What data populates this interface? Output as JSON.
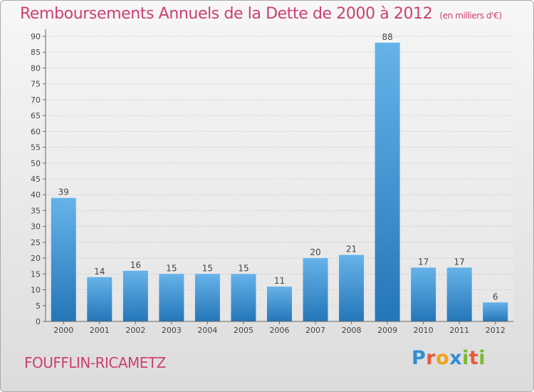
{
  "title": "Remboursements Annuels de la Dette de 2000 à 2012",
  "unit": "(en milliers d'€)",
  "town": "FOUFFLIN-RICAMETZ",
  "logo": {
    "letters": [
      "P",
      "r",
      "o",
      "x",
      "i",
      "t",
      "i"
    ],
    "colors": [
      "#2f8fd4",
      "#e55a3a",
      "#f2a21b",
      "#2f8fd4",
      "#7ab82e",
      "#e55a3a",
      "#7ab82e"
    ]
  },
  "colors": {
    "bar_top": "#66b3ea",
    "bar_bottom": "#2576b8",
    "title": "#cc3f73"
  },
  "chart_data": {
    "type": "bar",
    "title": "Remboursements Annuels de la Dette de 2000 à 2012",
    "categories": [
      "2000",
      "2001",
      "2002",
      "2003",
      "2004",
      "2005",
      "2006",
      "2007",
      "2008",
      "2009",
      "2010",
      "2011",
      "2012"
    ],
    "values": [
      39,
      14,
      16,
      15,
      15,
      15,
      11,
      20,
      21,
      88,
      17,
      17,
      6
    ],
    "ylim": [
      0,
      90
    ],
    "yticks": [
      0,
      5,
      10,
      15,
      20,
      25,
      30,
      35,
      40,
      45,
      50,
      55,
      60,
      65,
      70,
      75,
      80,
      85,
      90
    ],
    "grid": true,
    "data_labels": true
  }
}
